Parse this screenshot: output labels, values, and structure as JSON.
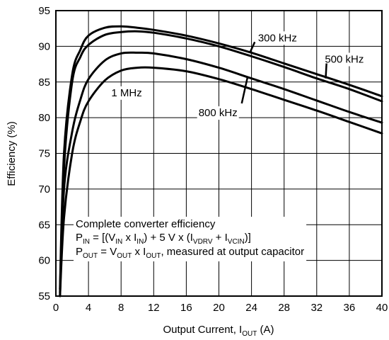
{
  "chart_data": {
    "type": "line",
    "xlabel": "Output Current, I_OUT (A)",
    "xlabel_parts": {
      "pre": "Output Current, I",
      "sub": "OUT",
      "post": " (A)"
    },
    "ylabel": "Efficiency (%)",
    "xlim": [
      0,
      40
    ],
    "ylim": [
      55,
      95
    ],
    "xticks": [
      0,
      4,
      8,
      12,
      16,
      20,
      24,
      28,
      32,
      36,
      40
    ],
    "yticks": [
      55,
      60,
      65,
      70,
      75,
      80,
      85,
      90,
      95
    ],
    "grid": true,
    "series": [
      {
        "name": "300 kHz",
        "x": [
          0.5,
          1,
          2,
          3,
          4,
          6,
          8,
          10,
          12,
          16,
          20,
          24,
          28,
          32,
          36,
          40
        ],
        "y": [
          56,
          75,
          86,
          89.5,
          91.5,
          92.6,
          92.8,
          92.6,
          92.3,
          91.5,
          90.4,
          89.1,
          87.6,
          86.1,
          84.6,
          83.0
        ]
      },
      {
        "name": "500 kHz",
        "x": [
          0.5,
          1,
          2,
          3,
          4,
          6,
          8,
          10,
          12,
          16,
          20,
          24,
          28,
          32,
          36,
          40
        ],
        "y": [
          55.5,
          73,
          85,
          88.5,
          90.2,
          91.6,
          92.0,
          92.1,
          91.9,
          91.1,
          90.0,
          88.6,
          87.1,
          85.5,
          84.0,
          82.3
        ]
      },
      {
        "name": "800 kHz",
        "x": [
          0.5,
          1,
          2,
          3,
          4,
          6,
          8,
          10,
          12,
          16,
          20,
          24,
          28,
          32,
          36,
          40
        ],
        "y": [
          55,
          70,
          78,
          82.5,
          85.4,
          88.0,
          89.0,
          89.1,
          89.0,
          88.2,
          87.0,
          85.5,
          84.0,
          82.4,
          80.8,
          79.3
        ]
      },
      {
        "name": "1 MHz",
        "x": [
          0.5,
          1,
          2,
          3,
          4,
          6,
          8,
          10,
          12,
          16,
          20,
          24,
          28,
          32,
          36,
          40
        ],
        "y": [
          55,
          66,
          75,
          79.5,
          82.3,
          85.2,
          86.6,
          87.0,
          87.0,
          86.5,
          85.4,
          84.0,
          82.5,
          81.0,
          79.4,
          77.8
        ]
      }
    ],
    "curve_labels": [
      {
        "text": "300 kHz",
        "x": 24.8,
        "y": 91.2,
        "leader": {
          "from": [
            24.4,
            90.6
          ],
          "to": [
            23.8,
            89.1
          ]
        }
      },
      {
        "text": "500 kHz",
        "x": 33,
        "y": 88.2,
        "leader": {
          "from": [
            33.2,
            87.6
          ],
          "to": [
            33.1,
            85.5
          ]
        }
      },
      {
        "text": "800 kHz",
        "x": 17.5,
        "y": 80.7,
        "leader": {
          "from": [
            22.8,
            82.0
          ],
          "to": [
            23.5,
            85.6
          ]
        }
      },
      {
        "text": "1 MHz",
        "x": 6.8,
        "y": 83.5,
        "leader": null
      }
    ],
    "annotation": {
      "line1": "Complete converter efficiency",
      "line2_parts": [
        "P",
        "IN",
        " = [(V",
        "IN",
        " x I",
        "IN",
        ") + 5 V x (I",
        "VDRV",
        " + I",
        "VCIN",
        ")]"
      ],
      "line3_parts": [
        "P",
        "OUT",
        " = V",
        "OUT",
        " x I",
        "OUT",
        ", measured at output capacitor"
      ]
    }
  }
}
